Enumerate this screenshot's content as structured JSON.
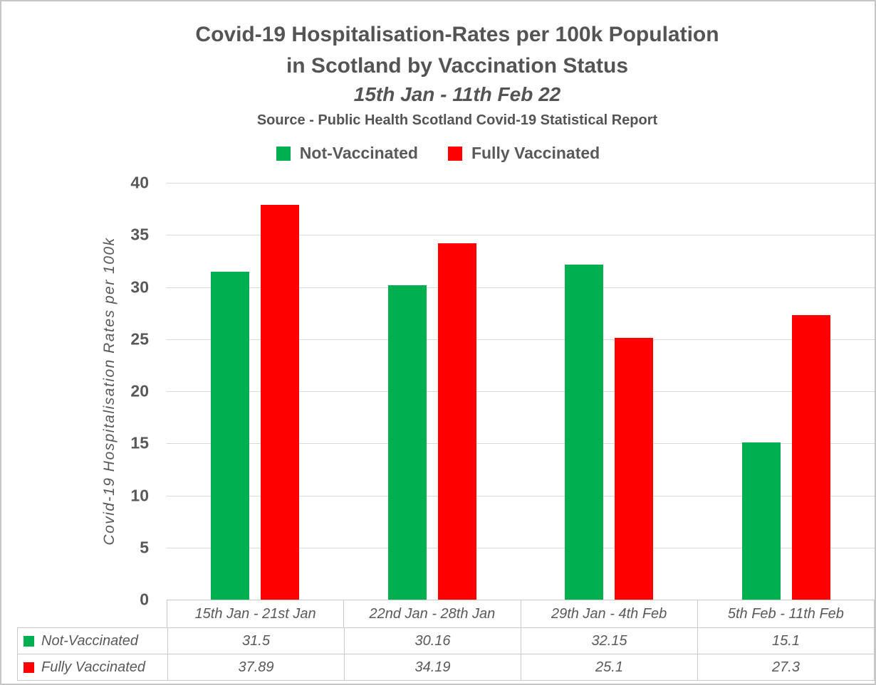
{
  "chart": {
    "title_line1": "Covid-19 Hospitalisation-Rates per 100k Population",
    "title_line2": "in Scotland by Vaccination Status",
    "date_range": "15th Jan - 11th Feb 22",
    "source": "Source - Public Health Scotland Covid-19 Statistical Report"
  },
  "chart_data": {
    "type": "bar",
    "title": "Covid-19 Hospitalisation-Rates per 100k Population in Scotland by Vaccination Status",
    "subtitle": "15th Jan - 11th Feb 22",
    "source": "Source - Public Health Scotland Covid-19 Statistical Report",
    "categories": [
      "15th Jan - 21st Jan",
      "22nd Jan - 28th Jan",
      "29th Jan - 4th Feb",
      "5th Feb - 11th Feb"
    ],
    "series": [
      {
        "name": "Not-Vaccinated",
        "color": "#00B050",
        "values": [
          31.5,
          30.16,
          32.15,
          15.1
        ]
      },
      {
        "name": "Fully Vaccinated",
        "color": "#FF0000",
        "values": [
          37.89,
          34.19,
          25.1,
          27.3
        ]
      }
    ],
    "xlabel": "",
    "ylabel": "Covid-19 Hospitalisation Rates per 100k",
    "ylim": [
      0,
      40
    ],
    "y_ticks": [
      0,
      5,
      10,
      15,
      20,
      25,
      30,
      35,
      40
    ],
    "grid": true,
    "legend_position": "top",
    "data_table_shown": true
  },
  "colors": {
    "not_vaccinated": "#00B050",
    "fully_vaccinated": "#FF0000",
    "text": "#595959",
    "gridline": "#D9D9D9",
    "table_border": "#C9C9C9"
  }
}
